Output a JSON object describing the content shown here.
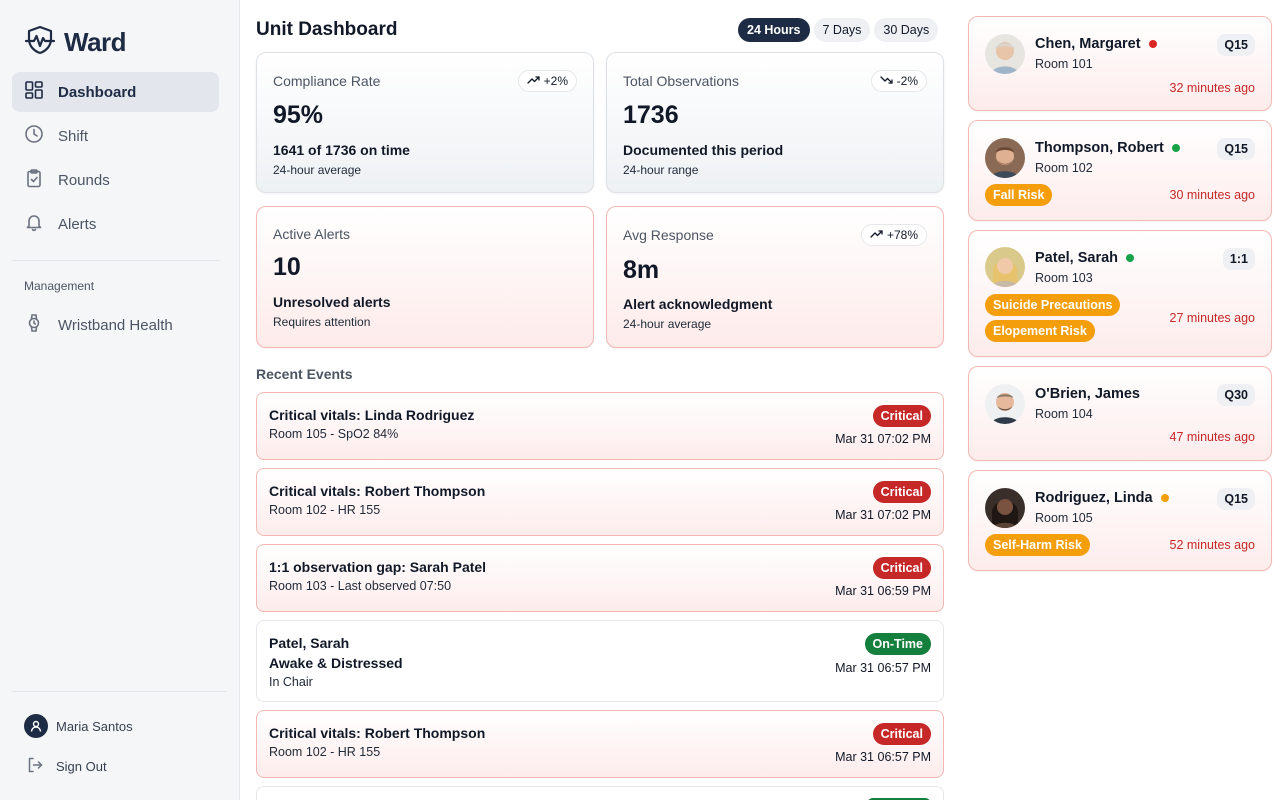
{
  "brand": {
    "name": "Ward"
  },
  "sidebar": {
    "nav": [
      {
        "label": "Dashboard",
        "icon": "dashboard-icon",
        "active": true
      },
      {
        "label": "Shift",
        "icon": "clock-icon"
      },
      {
        "label": "Rounds",
        "icon": "clipboard-icon"
      },
      {
        "label": "Alerts",
        "icon": "bell-icon"
      }
    ],
    "section_label": "Management",
    "management": [
      {
        "label": "Wristband Health",
        "icon": "watch-icon"
      }
    ],
    "user": {
      "name": "Maria Santos"
    },
    "signout_label": "Sign Out"
  },
  "header": {
    "title": "Unit Dashboard",
    "ranges": [
      "24 Hours",
      "7 Days",
      "30 Days"
    ],
    "active_range": "24 Hours"
  },
  "stats": {
    "compliance": {
      "title": "Compliance Rate",
      "trend": "+2%",
      "value": "95%",
      "sub": "1641 of 1736 on time",
      "note": "24-hour average"
    },
    "observations": {
      "title": "Total Observations",
      "trend": "-2%",
      "value": "1736",
      "sub": "Documented this period",
      "note": "24-hour range"
    },
    "alerts": {
      "title": "Active Alerts",
      "value": "10",
      "sub": "Unresolved alerts",
      "note": "Requires attention"
    },
    "response": {
      "title": "Avg Response",
      "trend": "+78%",
      "value": "8m",
      "sub": "Alert acknowledgment",
      "note": "24-hour average"
    }
  },
  "recent": {
    "label": "Recent Events",
    "events": [
      {
        "title": "Critical vitals: Linda Rodriguez",
        "sub": "Room 105 - SpO2 84%",
        "badge": "Critical",
        "time": "Mar 31 07:02 PM"
      },
      {
        "title": "Critical vitals: Robert Thompson",
        "sub": "Room 102 - HR 155",
        "badge": "Critical",
        "time": "Mar 31 07:02 PM"
      },
      {
        "title": "1:1 observation gap: Sarah Patel",
        "sub": "Room 103 - Last observed 07:50",
        "badge": "Critical",
        "time": "Mar 31 06:59 PM"
      },
      {
        "title": "Patel, Sarah",
        "title2": "Awake & Distressed",
        "sub": "In Chair",
        "badge": "On-Time",
        "time": "Mar 31 06:57 PM"
      },
      {
        "title": "Critical vitals: Robert Thompson",
        "sub": "Room 102 - HR 155",
        "badge": "Critical",
        "time": "Mar 31 06:57 PM"
      }
    ]
  },
  "patients": [
    {
      "name": "Chen, Margaret",
      "status_color": "#dc2626",
      "room": "Room 101",
      "freq": "Q15",
      "time": "32 minutes ago",
      "tags": []
    },
    {
      "name": "Thompson, Robert",
      "status_color": "#16a34a",
      "room": "Room 102",
      "freq": "Q15",
      "time": "30 minutes ago",
      "tags": [
        "Fall Risk"
      ]
    },
    {
      "name": "Patel, Sarah",
      "status_color": "#16a34a",
      "room": "Room 103",
      "freq": "1:1",
      "time": "27 minutes ago",
      "tags": [
        "Suicide Precautions",
        "Elopement Risk"
      ]
    },
    {
      "name": "O'Brien, James",
      "status_color": "",
      "room": "Room 104",
      "freq": "Q30",
      "time": "47 minutes ago",
      "tags": []
    },
    {
      "name": "Rodriguez, Linda",
      "status_color": "#f59e0b",
      "room": "Room 105",
      "freq": "Q15",
      "time": "52 minutes ago",
      "tags": [
        "Self-Harm Risk"
      ]
    }
  ],
  "colors": {
    "brand": "#1e2b44",
    "critical": "#c62828",
    "ontime": "#15803d",
    "warning": "#f59e0b"
  }
}
